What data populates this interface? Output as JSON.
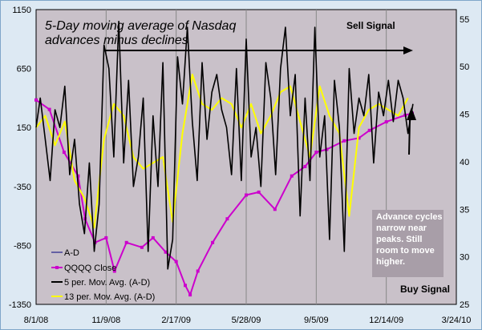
{
  "chart_data": {
    "type": "line",
    "title": "5-Day moving average of Nasdaq advances minus declines",
    "title_lines": [
      "5-Day moving average of Nasdaq",
      "advances minus declines"
    ],
    "x_ticks": [
      "8/1/08",
      "11/9/08",
      "2/17/09",
      "5/28/09",
      "9/5/09",
      "12/14/09",
      "3/24/10"
    ],
    "y_left": {
      "ticks": [
        1150,
        650,
        150,
        -350,
        -850,
        -1350
      ],
      "ylim": [
        -1350,
        1150
      ]
    },
    "y_right": {
      "ticks": [
        55,
        50,
        45,
        40,
        35,
        30,
        25
      ],
      "ylim": [
        25,
        56
      ]
    },
    "grid": "vertical",
    "legend_position": "lower-left",
    "colors": {
      "background": "#dde9f3",
      "plot_bg": "#c9c1c9",
      "qqqq": "#cc00cc",
      "ad": "#000080",
      "ma5": "#000000",
      "ma13": "#ffff00"
    },
    "series": [
      {
        "name": "QQQQ Close",
        "axis": "right",
        "style": "line-markers",
        "x": [
          "2008-08-01",
          "2008-08-20",
          "2008-09-10",
          "2008-09-30",
          "2008-10-10",
          "2008-10-24",
          "2008-11-09",
          "2008-11-21",
          "2008-12-08",
          "2008-12-30",
          "2009-01-15",
          "2009-02-02",
          "2009-02-17",
          "2009-03-02",
          "2009-03-09",
          "2009-03-20",
          "2009-04-10",
          "2009-05-01",
          "2009-05-28",
          "2009-06-15",
          "2009-07-08",
          "2009-08-01",
          "2009-08-20",
          "2009-09-05",
          "2009-09-20",
          "2009-10-15",
          "2009-11-05",
          "2009-11-20",
          "2009-12-14",
          "2010-01-10",
          "2010-01-20"
        ],
        "values": [
          46.5,
          45.5,
          41,
          38.5,
          34,
          31.5,
          32,
          28.5,
          31.5,
          31,
          32,
          30.5,
          29.5,
          27,
          26,
          28.5,
          31.5,
          34,
          36.5,
          36.8,
          35,
          38.5,
          39.5,
          41,
          41.3,
          42.2,
          42.5,
          43.3,
          44.2,
          44.9,
          45.1
        ]
      },
      {
        "name": "5 per. Mov. Avg. (A-D)",
        "axis": "left",
        "x": [
          "2008-08-01",
          "2008-08-07",
          "2008-08-14",
          "2008-08-21",
          "2008-08-28",
          "2008-09-04",
          "2008-09-11",
          "2008-09-18",
          "2008-09-25",
          "2008-10-02",
          "2008-10-09",
          "2008-10-16",
          "2008-10-23",
          "2008-10-30",
          "2008-11-06",
          "2008-11-13",
          "2008-11-20",
          "2008-11-27",
          "2008-12-04",
          "2008-12-11",
          "2008-12-18",
          "2008-12-25",
          "2009-01-01",
          "2009-01-08",
          "2009-01-15",
          "2009-01-22",
          "2009-01-29",
          "2009-02-05",
          "2009-02-12",
          "2009-02-19",
          "2009-02-26",
          "2009-03-05",
          "2009-03-12",
          "2009-03-19",
          "2009-03-26",
          "2009-04-02",
          "2009-04-09",
          "2009-04-16",
          "2009-04-23",
          "2009-04-30",
          "2009-05-07",
          "2009-05-14",
          "2009-05-21",
          "2009-05-28",
          "2009-06-04",
          "2009-06-11",
          "2009-06-18",
          "2009-06-25",
          "2009-07-02",
          "2009-07-09",
          "2009-07-16",
          "2009-07-23",
          "2009-07-30",
          "2009-08-06",
          "2009-08-13",
          "2009-08-20",
          "2009-08-27",
          "2009-09-03",
          "2009-09-10",
          "2009-09-17",
          "2009-09-24",
          "2009-10-01",
          "2009-10-08",
          "2009-10-15",
          "2009-10-22",
          "2009-10-29",
          "2009-11-05",
          "2009-11-12",
          "2009-11-19",
          "2009-11-26",
          "2009-12-03",
          "2009-12-10",
          "2009-12-17",
          "2009-12-24",
          "2009-12-31",
          "2010-01-07",
          "2010-01-14",
          "2010-01-21"
        ],
        "values": [
          150,
          400,
          50,
          -300,
          300,
          150,
          500,
          -250,
          50,
          -500,
          -750,
          -150,
          -900,
          -500,
          850,
          650,
          -100,
          1050,
          -150,
          550,
          -350,
          -100,
          400,
          -900,
          250,
          -350,
          700,
          -1050,
          -800,
          750,
          350,
          1000,
          200,
          -300,
          700,
          50,
          450,
          600,
          300,
          150,
          -250,
          650,
          -300,
          900,
          -100,
          150,
          -350,
          700,
          400,
          -250,
          650,
          1000,
          250,
          600,
          -600,
          400,
          -300,
          1000,
          -100,
          250,
          -800,
          550,
          150,
          -900,
          650,
          100,
          400,
          250,
          600,
          -150,
          450,
          250,
          550,
          200,
          550,
          400,
          100,
          350
        ]
      },
      {
        "name": "13 per. Mov. Avg. (A-D)",
        "axis": "left",
        "x": [
          "2008-08-01",
          "2008-08-14",
          "2008-08-28",
          "2008-09-11",
          "2008-09-25",
          "2008-10-09",
          "2008-10-23",
          "2008-11-06",
          "2008-11-20",
          "2008-12-04",
          "2008-12-18",
          "2009-01-01",
          "2009-01-15",
          "2009-01-29",
          "2009-02-12",
          "2009-02-26",
          "2009-03-12",
          "2009-03-26",
          "2009-04-09",
          "2009-04-23",
          "2009-05-07",
          "2009-05-21",
          "2009-06-04",
          "2009-06-18",
          "2009-07-02",
          "2009-07-16",
          "2009-07-30",
          "2009-08-13",
          "2009-08-27",
          "2009-09-10",
          "2009-09-24",
          "2009-10-08",
          "2009-10-22",
          "2009-11-05",
          "2009-11-19",
          "2009-12-03",
          "2009-12-17",
          "2009-12-31",
          "2010-01-14"
        ],
        "values": [
          150,
          250,
          0,
          200,
          -300,
          -450,
          -700,
          50,
          350,
          250,
          -100,
          -200,
          -150,
          -100,
          -650,
          100,
          600,
          350,
          300,
          400,
          350,
          150,
          350,
          100,
          250,
          450,
          500,
          200,
          -100,
          500,
          250,
          100,
          -600,
          150,
          300,
          350,
          300,
          250,
          400
        ]
      }
    ],
    "legend": [
      "A-D",
      "QQQQ Close",
      "5 per. Mov. Avg. (A-D)",
      "13 per. Mov. Avg. (A-D)"
    ],
    "annotations": {
      "sell_signal": "Sell Signal",
      "buy_signal": "Buy Signal",
      "note_lines": [
        "Advance cycles",
        "narrow near",
        "peaks.  Still",
        "room to move",
        "higher."
      ]
    }
  }
}
